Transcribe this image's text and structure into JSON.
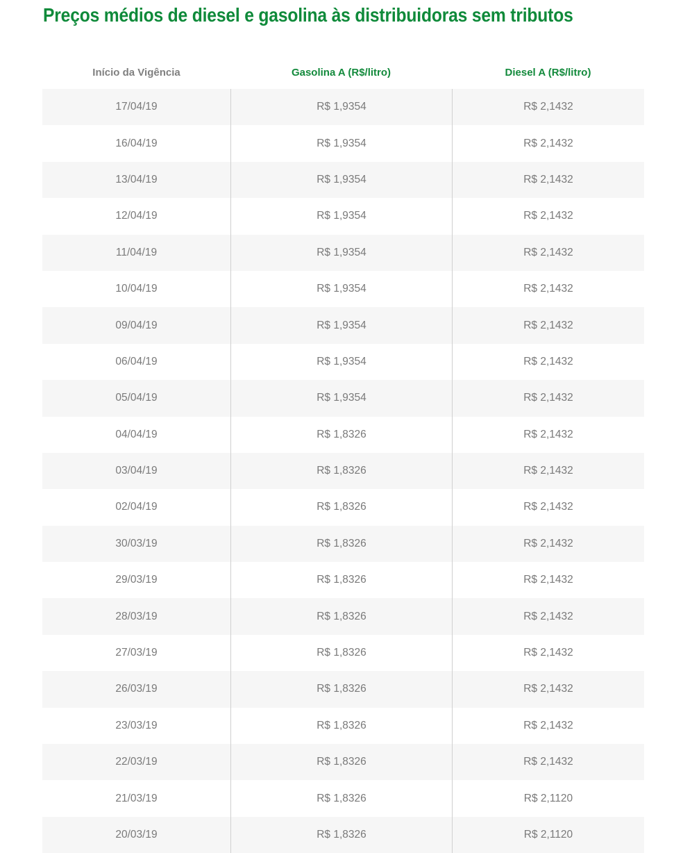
{
  "title": "Preços médios de diesel e gasolina às distribuidoras sem tributos",
  "columns": [
    "Início da Vigência",
    "Gasolina A (R$/litro)",
    "Diesel A (R$/litro)"
  ],
  "rows": [
    [
      "17/04/19",
      "R$ 1,9354",
      "R$ 2,1432"
    ],
    [
      "16/04/19",
      "R$ 1,9354",
      "R$ 2,1432"
    ],
    [
      "13/04/19",
      "R$ 1,9354",
      "R$ 2,1432"
    ],
    [
      "12/04/19",
      "R$ 1,9354",
      "R$ 2,1432"
    ],
    [
      "11/04/19",
      "R$ 1,9354",
      "R$ 2,1432"
    ],
    [
      "10/04/19",
      "R$ 1,9354",
      "R$ 2,1432"
    ],
    [
      "09/04/19",
      "R$ 1,9354",
      "R$ 2,1432"
    ],
    [
      "06/04/19",
      "R$ 1,9354",
      "R$ 2,1432"
    ],
    [
      "05/04/19",
      "R$ 1,9354",
      "R$ 2,1432"
    ],
    [
      "04/04/19",
      "R$ 1,8326",
      "R$ 2,1432"
    ],
    [
      "03/04/19",
      "R$ 1,8326",
      "R$ 2,1432"
    ],
    [
      "02/04/19",
      "R$ 1,8326",
      "R$ 2,1432"
    ],
    [
      "30/03/19",
      "R$ 1,8326",
      "R$ 2,1432"
    ],
    [
      "29/03/19",
      "R$ 1,8326",
      "R$ 2,1432"
    ],
    [
      "28/03/19",
      "R$ 1,8326",
      "R$ 2,1432"
    ],
    [
      "27/03/19",
      "R$ 1,8326",
      "R$ 2,1432"
    ],
    [
      "26/03/19",
      "R$ 1,8326",
      "R$ 2,1432"
    ],
    [
      "23/03/19",
      "R$ 1,8326",
      "R$ 2,1432"
    ],
    [
      "22/03/19",
      "R$ 1,8326",
      "R$ 2,1432"
    ],
    [
      "21/03/19",
      "R$ 1,8326",
      "R$ 2,1120"
    ],
    [
      "20/03/19",
      "R$ 1,8326",
      "R$ 2,1120"
    ]
  ],
  "colors": {
    "accent": "#0f8a3a",
    "text": "#7a7a7a",
    "stripe": "#f6f6f6"
  }
}
